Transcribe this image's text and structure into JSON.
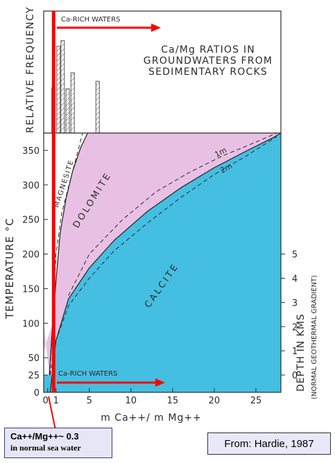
{
  "chart_data": [
    {
      "type": "bar",
      "title": "Ca/Mg RATIOS IN GROUNDWATERS FROM SEDIMENTARY ROCKS",
      "title_lines": [
        "Ca/Mg RATIOS IN",
        "GROUNDWATERS FROM",
        "SEDIMENTARY ROCKS"
      ],
      "ylabel": "RELATIVE FREQUENCY",
      "arrow_label": "Ca-RICH WATERS",
      "x": [
        0.7,
        1.3,
        1.8,
        2.4,
        3.0,
        6.0
      ],
      "values": [
        0.48,
        0.92,
        0.98,
        0.47,
        0.64,
        0.55
      ],
      "ylim": [
        0,
        1
      ],
      "bar_fill": "hatched"
    },
    {
      "type": "area",
      "xlabel": "m Ca++/ m Mg++",
      "ylabel": "TEMPERATURE °C",
      "y2label": "DEPTH IN KMS",
      "y2sublabel": "(NORMAL GEOTHERMAL GRADIENT)",
      "xlim": [
        0,
        28
      ],
      "ylim": [
        0,
        375
      ],
      "x_ticks": [
        0,
        1,
        5,
        10,
        15,
        20,
        25
      ],
      "y_ticks": [
        0,
        25,
        50,
        100,
        150,
        200,
        250,
        300,
        350
      ],
      "y2_ticks": [
        0,
        1,
        2,
        3,
        4,
        5
      ],
      "fields": [
        {
          "name": "MAGNESITE",
          "color": "#ffffff"
        },
        {
          "name": "DOLOMITE",
          "color": "#e8c0e4"
        },
        {
          "name": "CALCITE",
          "color": "#44bfe2"
        }
      ],
      "boundaries": [
        {
          "name": "magnesite-dolomite",
          "style": "solid",
          "points": [
            [
              0.2,
              25
            ],
            [
              0.6,
              100
            ],
            [
              1.1,
              175
            ],
            [
              1.5,
              230
            ],
            [
              2.2,
              280
            ],
            [
              3.0,
              320
            ],
            [
              4.0,
              355
            ],
            [
              4.8,
              375
            ]
          ]
        },
        {
          "name": "dashed-magnesite",
          "style": "dashed",
          "points": [
            [
              0.25,
              25
            ],
            [
              0.6,
              100
            ],
            [
              1.0,
              200
            ],
            [
              1.7,
              260
            ],
            [
              3.0,
              320
            ],
            [
              4.2,
              375
            ]
          ]
        },
        {
          "name": "dolomite-calcite",
          "style": "solid",
          "points": [
            [
              0.3,
              0
            ],
            [
              1.0,
              75
            ],
            [
              2.5,
              135
            ],
            [
              5,
              180
            ],
            [
              8,
              220
            ],
            [
              12,
              262
            ],
            [
              16,
              296
            ],
            [
              20,
              325
            ],
            [
              24,
              350
            ],
            [
              27,
              368
            ],
            [
              28,
              375
            ]
          ]
        },
        {
          "name": "1m",
          "label": "1m",
          "style": "dashed",
          "points": [
            [
              2.5,
              140
            ],
            [
              5,
              200
            ],
            [
              9,
              250
            ],
            [
              13,
              290
            ],
            [
              17,
              318
            ],
            [
              21,
              342
            ],
            [
              25,
              362
            ],
            [
              27.5,
              375
            ]
          ]
        },
        {
          "name": "2m",
          "label": "2m",
          "style": "dashed",
          "points": [
            [
              0.3,
              25
            ],
            [
              1.0,
              75
            ],
            [
              2.5,
              125
            ],
            [
              5,
              165
            ],
            [
              8,
              205
            ],
            [
              12,
              245
            ],
            [
              16,
              282
            ],
            [
              20,
              315
            ],
            [
              24,
              343
            ],
            [
              27.5,
              370
            ]
          ]
        }
      ],
      "seawater_ratio": 0.3,
      "arrow_label": "Ca-RICH WATERS"
    }
  ],
  "colors": {
    "seawater_line": "#ff0000",
    "arrow": "#ff0000",
    "dolomite": "#e8c0e4",
    "calcite": "#44bfe2",
    "ink": "#2b2b2b"
  },
  "note": {
    "line1": "Ca++/Mg++~ 0.3",
    "line2": "in normal sea water"
  },
  "source": "From: Hardie, 1987"
}
